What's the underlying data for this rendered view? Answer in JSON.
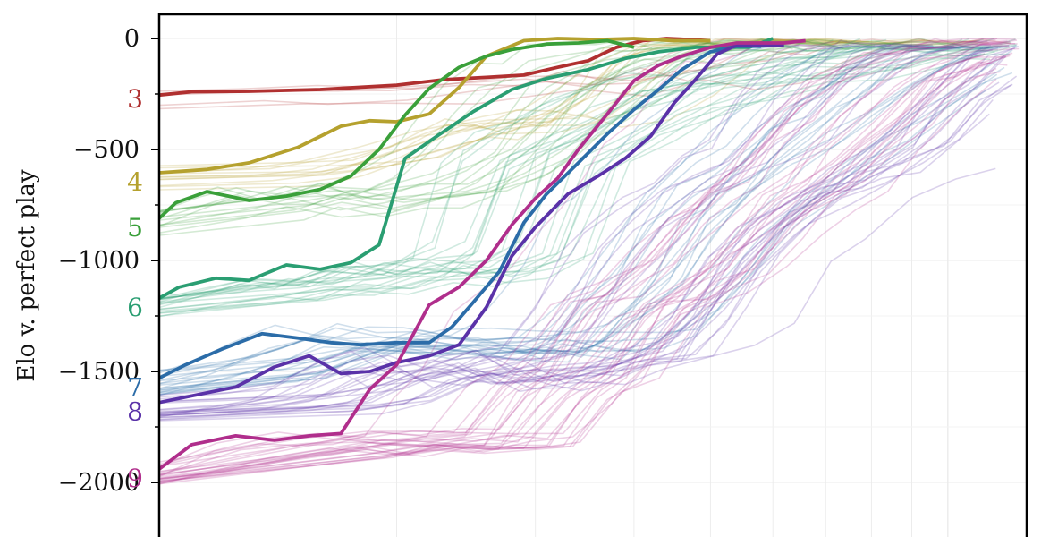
{
  "chart_data": {
    "type": "line",
    "title": "",
    "xlabel": "",
    "ylabel": "Elo v. perfect play",
    "x_scale": "log",
    "ylim": [
      -2250,
      100
    ],
    "yticks": [
      0,
      -500,
      -1000,
      -1500,
      -2000
    ],
    "ytick_labels": [
      "0",
      "−500",
      "−1000",
      "−1500",
      "−2000"
    ],
    "grid": true,
    "series": [
      {
        "name": "3",
        "color": "#b03030",
        "x": [
          1.0,
          1.1,
          1.3,
          1.6,
          2.0,
          2.3,
          2.6,
          2.9,
          3.2,
          3.5,
          3.8,
          4.1,
          4.4,
          4.7,
          5.0
        ],
        "values": [
          -255,
          -240,
          -238,
          -230,
          -210,
          -185,
          -175,
          -165,
          -130,
          -100,
          -40,
          -10,
          0,
          -5,
          -10
        ],
        "faint_count": 5
      },
      {
        "name": "4",
        "color": "#b5a12e",
        "x": [
          1.0,
          1.15,
          1.3,
          1.5,
          1.7,
          1.85,
          2.0,
          2.2,
          2.4,
          2.6,
          2.9,
          3.2,
          3.6,
          4.0,
          4.5,
          5.0
        ],
        "values": [
          -605,
          -590,
          -560,
          -490,
          -395,
          -370,
          -375,
          -340,
          -220,
          -80,
          -10,
          0,
          -5,
          0,
          -10,
          -10
        ],
        "faint_count": 12
      },
      {
        "name": "5",
        "color": "#3aa03a",
        "x": [
          1.0,
          1.05,
          1.15,
          1.3,
          1.45,
          1.6,
          1.75,
          1.9,
          2.05,
          2.2,
          2.4,
          2.6,
          2.8,
          3.1,
          3.4,
          3.7,
          4.0
        ],
        "values": [
          -810,
          -740,
          -690,
          -730,
          -710,
          -680,
          -620,
          -500,
          -345,
          -225,
          -130,
          -80,
          -50,
          -25,
          -20,
          -10,
          -40
        ],
        "faint_count": 15
      },
      {
        "name": "6",
        "color": "#2a9e72",
        "x": [
          1.0,
          1.06,
          1.18,
          1.3,
          1.45,
          1.6,
          1.75,
          1.9,
          2.05,
          2.25,
          2.5,
          2.8,
          3.1,
          3.5,
          3.9,
          4.3,
          4.8,
          5.2,
          5.6,
          6.0
        ],
        "values": [
          -1170,
          -1120,
          -1080,
          -1090,
          -1020,
          -1040,
          -1010,
          -930,
          -540,
          -440,
          -330,
          -230,
          -180,
          -140,
          -90,
          -60,
          -40,
          -40,
          -40,
          0
        ],
        "faint_count": 20
      },
      {
        "name": "7",
        "color": "#2b6ca8",
        "x": [
          1.0,
          1.08,
          1.2,
          1.35,
          1.5,
          1.65,
          1.8,
          2.0,
          2.2,
          2.35,
          2.5,
          2.7,
          2.9,
          3.1,
          3.4,
          3.7,
          4.0,
          4.3,
          4.6,
          5.0,
          5.4,
          5.8
        ],
        "values": [
          -1530,
          -1470,
          -1400,
          -1330,
          -1350,
          -1370,
          -1380,
          -1370,
          -1370,
          -1300,
          -1190,
          -1050,
          -830,
          -700,
          -560,
          -430,
          -320,
          -230,
          -140,
          -60,
          -35,
          -35
        ],
        "faint_count": 22
      },
      {
        "name": "8",
        "color": "#5a32a8",
        "x": [
          1.0,
          1.1,
          1.25,
          1.4,
          1.55,
          1.7,
          1.85,
          2.0,
          2.2,
          2.4,
          2.6,
          2.8,
          3.0,
          3.3,
          3.6,
          3.9,
          4.2,
          4.5,
          4.8,
          5.1,
          5.4,
          5.8,
          6.2
        ],
        "values": [
          -1640,
          -1610,
          -1570,
          -1480,
          -1430,
          -1510,
          -1500,
          -1460,
          -1430,
          -1380,
          -1210,
          -980,
          -850,
          -700,
          -620,
          -540,
          -440,
          -290,
          -180,
          -70,
          -30,
          -30,
          -30
        ],
        "faint_count": 24
      },
      {
        "name": "9",
        "color": "#b02e8c",
        "x": [
          1.0,
          1.1,
          1.25,
          1.4,
          1.55,
          1.7,
          1.85,
          2.0,
          2.2,
          2.4,
          2.6,
          2.8,
          3.0,
          3.2,
          3.4,
          3.7,
          4.0,
          4.3,
          4.6,
          5.0,
          5.4,
          5.8,
          6.2,
          6.6
        ],
        "values": [
          -1940,
          -1830,
          -1790,
          -1810,
          -1790,
          -1780,
          -1580,
          -1470,
          -1200,
          -1120,
          -1000,
          -840,
          -720,
          -630,
          -500,
          -340,
          -190,
          -120,
          -80,
          -40,
          -20,
          -20,
          -20,
          -10
        ],
        "faint_count": 26
      }
    ]
  }
}
